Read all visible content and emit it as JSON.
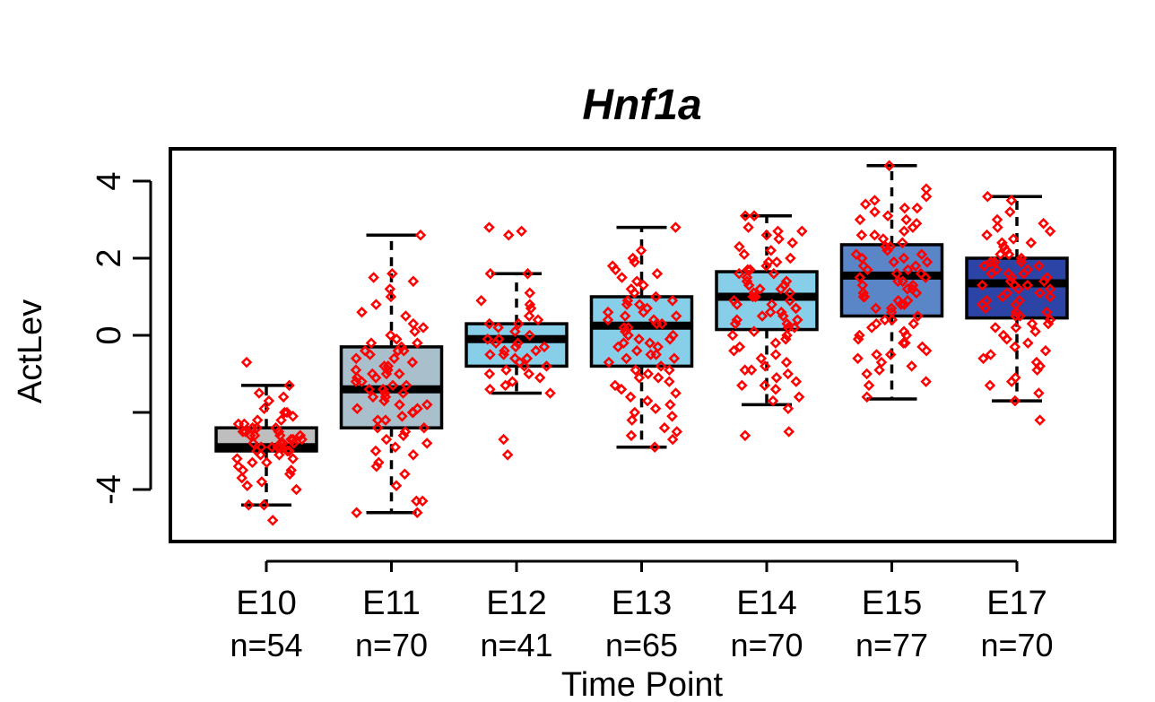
{
  "chart_data": {
    "type": "boxplot",
    "title": "Hnf1a",
    "xlabel": "Time Point",
    "ylabel": "ActLev",
    "ylim": [
      -5.4,
      4.8
    ],
    "yticks": [
      4,
      2,
      0,
      -2,
      -4
    ],
    "ytick_labels": [
      "4",
      "2",
      "0",
      "",
      "-4"
    ],
    "categories": [
      "E10",
      "E11",
      "E12",
      "E13",
      "E14",
      "E15",
      "E17"
    ],
    "counts": [
      "n=54",
      "n=70",
      "n=41",
      "n=65",
      "n=70",
      "n=77",
      "n=70"
    ],
    "colors": [
      "#bebebe",
      "#a9bfcc",
      "#87cee8",
      "#87cee8",
      "#87cee8",
      "#5a86c8",
      "#2b44a6"
    ],
    "point_color": "#ff0000",
    "boxes": [
      {
        "whisker_low": -4.4,
        "q1": -3.0,
        "median": -2.9,
        "q3": -2.4,
        "whisker_high": -1.3
      },
      {
        "whisker_low": -4.6,
        "q1": -2.4,
        "median": -1.4,
        "q3": -0.3,
        "whisker_high": 2.6
      },
      {
        "whisker_low": -1.5,
        "q1": -0.8,
        "median": -0.1,
        "q3": 0.3,
        "whisker_high": 1.6
      },
      {
        "whisker_low": -2.9,
        "q1": -0.8,
        "median": 0.25,
        "q3": 1.0,
        "whisker_high": 2.8
      },
      {
        "whisker_low": -1.8,
        "q1": 0.15,
        "median": 1.0,
        "q3": 1.65,
        "whisker_high": 3.1
      },
      {
        "whisker_low": -1.65,
        "q1": 0.5,
        "median": 1.55,
        "q3": 2.35,
        "whisker_high": 4.4
      },
      {
        "whisker_low": -1.7,
        "q1": 0.45,
        "median": 1.35,
        "q3": 2.0,
        "whisker_high": 3.6
      }
    ],
    "points": [
      [
        -2.9,
        -3.3,
        -2.4,
        -2.7,
        -3.1,
        -2.5,
        -3.5,
        -2.8,
        -2.2,
        -3.6,
        -1.6,
        -2.6,
        -3.0,
        -2.3,
        -2.9,
        -3.9,
        -2.5,
        -2.0,
        -3.2,
        -2.7,
        -3.4,
        -1.9,
        -2.8,
        -3.0,
        -2.6,
        -2.4,
        -4.0,
        -2.1,
        -3.1,
        -2.9,
        -1.3,
        -2.5,
        -3.7,
        -2.8,
        -2.2,
        -3.3,
        -2.6,
        -4.4,
        -2.0,
        -0.7,
        -3.8,
        -2.7,
        -3.0,
        -2.4,
        -1.7,
        -3.5,
        -2.9,
        -2.3,
        -4.8,
        -3.2,
        -2.6,
        -1.5,
        -2.8,
        -4.4
      ],
      [
        -1.4,
        -0.8,
        -2.2,
        0.2,
        -1.0,
        -1.9,
        1.5,
        -0.4,
        -2.6,
        -1.2,
        0.8,
        -3.0,
        -1.6,
        -0.2,
        -2.0,
        1.2,
        -0.6,
        -4.3,
        -1.8,
        0.5,
        -1.1,
        -2.9,
        -0.9,
        1.6,
        -1.5,
        -3.4,
        0.0,
        -2.4,
        -0.5,
        -1.3,
        2.6,
        -1.0,
        -4.6,
        -0.3,
        -2.1,
        -1.7,
        0.3,
        -3.6,
        -1.1,
        -0.7,
        -2.8,
        1.0,
        -1.4,
        -3.9,
        -0.4,
        -1.9,
        -0.1,
        -2.5,
        -1.2,
        -4.3,
        0.6,
        -1.6,
        -0.8,
        -3.1,
        -2.2,
        -0.2,
        -1.0,
        1.4,
        -1.5,
        -2.7,
        -0.6,
        -3.3,
        -1.3,
        0.1,
        -2.0,
        -1.8,
        -0.4,
        -4.6,
        -2.4,
        -0.9
      ],
      [
        -0.1,
        0.3,
        -0.6,
        0.8,
        -1.0,
        -0.3,
        1.6,
        -0.8,
        0.0,
        -1.4,
        2.7,
        -0.2,
        0.5,
        -1.2,
        -0.5,
        1.1,
        -0.9,
        -3.1,
        0.2,
        -0.4,
        2.8,
        -0.7,
        -1.5,
        0.7,
        -0.2,
        -1.1,
        0.4,
        -2.7,
        -0.6,
        0.1,
        1.6,
        -0.3,
        -1.3,
        0.9,
        -0.8,
        2.6,
        -0.1,
        -0.5,
        0.3,
        -1.0,
        -0.4
      ],
      [
        0.3,
        -0.5,
        1.2,
        -1.4,
        0.8,
        -2.1,
        0.0,
        1.8,
        -0.9,
        -2.6,
        0.5,
        1.5,
        -0.2,
        -1.7,
        2.8,
        0.2,
        -1.1,
        0.9,
        -2.4,
        -0.6,
        1.3,
        -0.3,
        0.6,
        -1.9,
        -2.9,
        0.1,
        1.7,
        -0.8,
        0.4,
        -1.3,
        2.2,
        -0.1,
        -2.2,
        1.0,
        -0.5,
        0.7,
        -1.6,
        -0.4,
        1.4,
        -1.0,
        0.2,
        -2.7,
        0.9,
        -0.2,
        1.9,
        -1.2,
        0.5,
        -0.7,
        -2.0,
        1.1,
        0.0,
        -1.5,
        0.6,
        -0.9,
        2.0,
        -0.3,
        -1.8,
        0.8,
        -0.6,
        1.6,
        -2.5,
        0.3,
        -1.1,
        0.4,
        -0.1
      ],
      [
        1.0,
        0.3,
        1.6,
        -0.5,
        2.2,
        0.8,
        -1.2,
        1.3,
        0.0,
        2.7,
        -0.9,
        1.1,
        0.5,
        -1.6,
        1.9,
        0.2,
        3.1,
        -0.3,
        1.4,
        0.7,
        -1.9,
        1.7,
        0.1,
        2.4,
        -0.7,
        1.2,
        0.6,
        -2.6,
        2.0,
        0.9,
        -0.1,
        1.5,
        -1.3,
        0.4,
        2.8,
        1.0,
        -0.8,
        1.8,
        0.3,
        3.1,
        -1.4,
        0.7,
        2.1,
        -0.4,
        1.3,
        0.0,
        2.6,
        -1.1,
        0.8,
        1.6,
        -2.5,
        0.5,
        1.9,
        -0.2,
        1.1,
        2.3,
        -1.7,
        0.6,
        1.4,
        -0.6,
        0.9,
        2.7,
        -1.0,
        0.2,
        1.7,
        -0.9,
        2.5,
        0.4,
        1.2,
        -1.3
      ],
      [
        1.5,
        0.8,
        2.3,
        -0.2,
        1.9,
        0.4,
        3.0,
        1.2,
        -0.5,
        2.6,
        0.0,
        1.7,
        3.3,
        0.7,
        -0.9,
        2.1,
        1.1,
        3.8,
        0.3,
        1.4,
        -1.2,
        2.8,
        0.9,
        1.8,
        -0.4,
        2.4,
        0.1,
        3.4,
        1.3,
        -0.7,
        2.0,
        0.6,
        1.6,
        4.4,
        -0.1,
        2.7,
        1.0,
        -1.6,
        1.9,
        0.4,
        3.1,
        1.5,
        -0.3,
        2.2,
        0.8,
        3.6,
        1.2,
        -0.8,
        2.5,
        0.2,
        1.7,
        3.0,
        -0.6,
        1.1,
        2.3,
        0.5,
        1.4,
        3.2,
        -1.0,
        2.0,
        0.9,
        1.6,
        -0.2,
        2.6,
        0.7,
        3.5,
        1.3,
        -1.3,
        1.8,
        0.3,
        2.9,
        1.0,
        -0.5,
        2.1,
        1.5,
        0.0,
        3.3
      ],
      [
        1.4,
        0.8,
        1.9,
        0.2,
        2.4,
        1.1,
        -0.2,
        1.7,
        0.5,
        2.8,
        -0.7,
        1.3,
        2.1,
        0.0,
        1.6,
        3.5,
        -1.2,
        0.9,
        1.8,
        -0.4,
        2.6,
        1.2,
        0.3,
        -1.5,
        1.9,
        0.7,
        3.0,
        1.5,
        -0.9,
        2.2,
        0.4,
        1.0,
        3.6,
        -0.1,
        1.7,
        0.6,
        2.5,
        -1.7,
        1.3,
        0.9,
        -0.6,
        2.0,
        1.4,
        0.1,
        2.9,
        1.1,
        -1.1,
        1.6,
        0.5,
        2.3,
        -0.3,
        1.8,
        0.8,
        3.2,
        -2.2,
        1.2,
        0.2,
        2.1,
        1.5,
        -0.8,
        1.9,
        0.6,
        2.7,
        1.0,
        -1.3,
        1.6,
        0.3,
        2.4,
        1.3,
        -0.5
      ]
    ]
  }
}
